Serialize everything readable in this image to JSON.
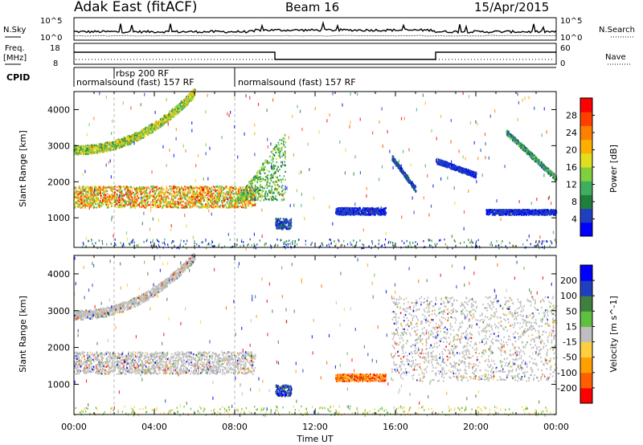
{
  "header": {
    "station": "Adak East (fitACF)",
    "beam": "Beam 16",
    "date": "15/Apr/2015"
  },
  "left_labels": {
    "nsky": "N.Sky",
    "freq": "Freq.",
    "freq_unit": "[MHz]",
    "cpid": "CPID"
  },
  "right_labels": {
    "nsearch": "N.Search",
    "nave": "Nave"
  },
  "noise_panel": {
    "left_ticks": [
      "10^5",
      "10^0"
    ],
    "right_ticks": [
      "10^5",
      "10^0"
    ]
  },
  "freq_panel": {
    "left_ticks": [
      "18",
      "8"
    ],
    "right_ticks": [
      "60",
      "0"
    ],
    "freq_steps": [
      {
        "start_hr": 0.0,
        "end_hr": 10.0,
        "value": "high"
      },
      {
        "start_hr": 10.0,
        "end_hr": 18.0,
        "value": "low"
      },
      {
        "start_hr": 18.0,
        "end_hr": 24.0,
        "value": "high"
      }
    ]
  },
  "cpid_panel": {
    "programs": [
      {
        "label": "normalsound (fast) 157 RF",
        "start_hr": 0.0
      },
      {
        "label": "rbsp 200 RF",
        "start_hr": 2.0
      },
      {
        "label": "normalsound (fast) 157 RF",
        "start_hr": 8.0
      }
    ]
  },
  "colors": {
    "power_bins": [
      "#0000ff",
      "#1f3fbf",
      "#1f7f3f",
      "#3faf5f",
      "#7fcf3f",
      "#dfdf1f",
      "#ffaf00",
      "#ff7f00",
      "#ff3f00",
      "#ff0000"
    ],
    "velocity_bins": [
      "#0000ff",
      "#1f3fbf",
      "#3f7f3f",
      "#5fbf3f",
      "#bebebe",
      "#ffcf3f",
      "#ff9f00",
      "#ff5f00",
      "#ff0000"
    ],
    "ground_scatter": "#bebebe"
  },
  "chart_data": [
    {
      "type": "heatmap",
      "name": "power",
      "xlabel": "",
      "ylabel": "Slant Range [km]",
      "xlim": [
        0,
        24
      ],
      "ylim": [
        180,
        4500
      ],
      "yticks": [
        1000,
        2000,
        3000,
        4000
      ],
      "colorbar": {
        "label": "Power [dB]",
        "ticks": [
          4,
          8,
          12,
          16,
          20,
          24,
          28
        ],
        "range": [
          0,
          32
        ]
      },
      "features": [
        {
          "feature": "strong ionospheric band",
          "x_start_hr": 0.0,
          "x_end_hr": 9.0,
          "range_low_km": 1300,
          "range_high_km": 1900,
          "peak_db": 30
        },
        {
          "feature": "upper arc",
          "x_start_hr": 0.0,
          "x_end_hr": 6.0,
          "range_low_km": 2800,
          "range_high_km": 4500,
          "peak_db": 22
        },
        {
          "feature": "rising echoes",
          "x_start_hr": 8.0,
          "x_end_hr": 10.5,
          "range_low_km": 1500,
          "range_high_km": 3400,
          "peak_db": 18
        },
        {
          "feature": "patch",
          "x_start_hr": 10.0,
          "x_end_hr": 10.8,
          "range_low_km": 700,
          "range_high_km": 1000,
          "peak_db": 8
        },
        {
          "feature": "band",
          "x_start_hr": 13.0,
          "x_end_hr": 15.5,
          "range_low_km": 1100,
          "range_high_km": 1300,
          "peak_db": 6
        },
        {
          "feature": "descending streak",
          "x_start_hr": 15.8,
          "x_end_hr": 17.0,
          "range_low_km": 1800,
          "range_high_km": 2700,
          "peak_db": 8
        },
        {
          "feature": "descending streak",
          "x_start_hr": 18.0,
          "x_end_hr": 20.0,
          "range_low_km": 2200,
          "range_high_km": 2600,
          "peak_db": 6
        },
        {
          "feature": "band",
          "x_start_hr": 20.5,
          "x_end_hr": 24.0,
          "range_low_km": 1100,
          "range_high_km": 1250,
          "peak_db": 6
        },
        {
          "feature": "descending arc",
          "x_start_hr": 21.5,
          "x_end_hr": 24.0,
          "range_low_km": 2100,
          "range_high_km": 3400,
          "peak_db": 14
        }
      ]
    },
    {
      "type": "heatmap",
      "name": "velocity",
      "xlabel": "Time UT",
      "ylabel": "Slant Range [km]",
      "xlim": [
        0,
        24
      ],
      "ylim": [
        180,
        4500
      ],
      "yticks": [
        1000,
        2000,
        3000,
        4000
      ],
      "xticks": [
        "00:00",
        "04:00",
        "08:00",
        "12:00",
        "16:00",
        "20:00",
        "00:00"
      ],
      "colorbar": {
        "label": "Velocity [m s^-1]",
        "ticks": [
          "200",
          "100",
          "50",
          "15",
          "-15",
          "-50",
          "-100",
          "-200"
        ],
        "range": [
          -250,
          250
        ]
      },
      "features": [
        {
          "feature": "ground scatter band",
          "x_start_hr": 0.0,
          "x_end_hr": 9.0,
          "range_low_km": 1300,
          "range_high_km": 1900,
          "velocity": "grey"
        },
        {
          "feature": "upper arc",
          "x_start_hr": 0.0,
          "x_end_hr": 6.0,
          "range_low_km": 2800,
          "range_high_km": 4500,
          "velocity": "grey"
        },
        {
          "feature": "patch",
          "x_start_hr": 10.0,
          "x_end_hr": 10.8,
          "range_low_km": 700,
          "range_high_km": 1000,
          "velocity": "positive"
        },
        {
          "feature": "band",
          "x_start_hr": 13.0,
          "x_end_hr": 15.5,
          "range_low_km": 1100,
          "range_high_km": 1300,
          "velocity": "negative"
        },
        {
          "feature": "arcs",
          "x_start_hr": 15.8,
          "x_end_hr": 24.0,
          "range_low_km": 1100,
          "range_high_km": 3400,
          "velocity": "grey"
        }
      ]
    }
  ]
}
